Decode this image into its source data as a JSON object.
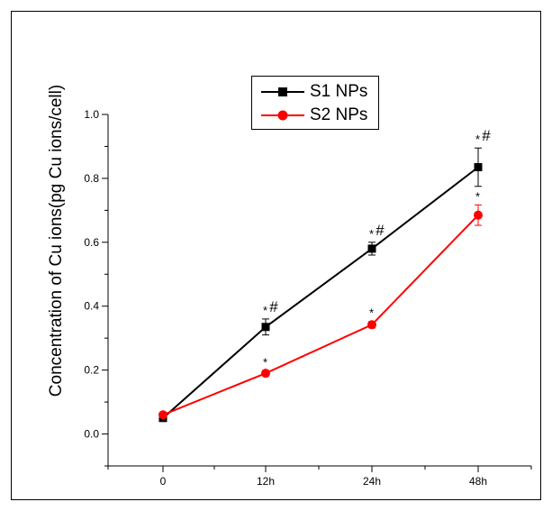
{
  "chart_data": {
    "type": "line",
    "categories": [
      "0",
      "12h",
      "24h",
      "48h"
    ],
    "ylabel": "Concentration of Cu ions(pg Cu ions/cell)",
    "xlabel": "",
    "ylim": [
      -0.1,
      1.0
    ],
    "yticks": [
      "0.0",
      "0.2",
      "0.4",
      "0.6",
      "0.8",
      "1.0"
    ],
    "grid": false,
    "legend_position": "top-center",
    "series": [
      {
        "name": "S1 NPs",
        "color": "#000000",
        "marker": "square",
        "values": [
          0.05,
          0.335,
          0.58,
          0.835
        ],
        "errors": [
          0.005,
          0.025,
          0.02,
          0.06
        ],
        "annotations": [
          "",
          "*#",
          "*#",
          "*#"
        ]
      },
      {
        "name": "S2 NPs",
        "color": "#ff0000",
        "marker": "circle",
        "values": [
          0.06,
          0.19,
          0.342,
          0.685
        ],
        "errors": [
          0.005,
          0.008,
          0.01,
          0.032
        ],
        "annotations": [
          "",
          "*",
          "*",
          "*"
        ]
      }
    ]
  }
}
